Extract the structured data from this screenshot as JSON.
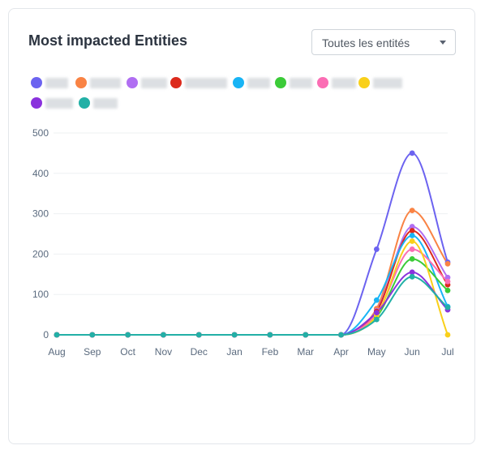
{
  "card": {
    "title": "Most impacted Entities",
    "filter": {
      "selected": "Toutes les entités"
    }
  },
  "legend": [
    {
      "color": "#6c63f0"
    },
    {
      "color": "#f98344"
    },
    {
      "color": "#b06ef2"
    },
    {
      "color": "#dc2a1c"
    },
    {
      "color": "#18b4f5"
    },
    {
      "color": "#3bcb38"
    },
    {
      "color": "#fb6db4"
    },
    {
      "color": "#f9d01a"
    },
    {
      "color": "#8a32dd"
    },
    {
      "color": "#22b0a6"
    }
  ],
  "chart_data": {
    "type": "line",
    "title": "",
    "xlabel": "",
    "ylabel": "",
    "x": [
      "Aug",
      "Sep",
      "Oct",
      "Nov",
      "Dec",
      "Jan",
      "Feb",
      "Mar",
      "Apr",
      "May",
      "Jun",
      "Jul"
    ],
    "ylim": [
      0,
      500
    ],
    "yticks": [
      0,
      100,
      200,
      300,
      400,
      500
    ],
    "grid": true,
    "legend_position": "top-left",
    "series": [
      {
        "color": "#6c63f0",
        "values": [
          0,
          0,
          0,
          0,
          0,
          0,
          0,
          0,
          0,
          212,
          450,
          180
        ]
      },
      {
        "color": "#f98344",
        "values": [
          0,
          0,
          0,
          0,
          0,
          0,
          0,
          0,
          0,
          65,
          308,
          176
        ]
      },
      {
        "color": "#b06ef2",
        "values": [
          0,
          0,
          0,
          0,
          0,
          0,
          0,
          0,
          0,
          60,
          268,
          142
        ]
      },
      {
        "color": "#dc2a1c",
        "values": [
          0,
          0,
          0,
          0,
          0,
          0,
          0,
          0,
          0,
          58,
          258,
          124
        ]
      },
      {
        "color": "#18b4f5",
        "values": [
          0,
          0,
          0,
          0,
          0,
          0,
          0,
          0,
          0,
          86,
          246,
          70
        ]
      },
      {
        "color": "#3bcb38",
        "values": [
          0,
          0,
          0,
          0,
          0,
          0,
          0,
          0,
          0,
          45,
          188,
          110
        ]
      },
      {
        "color": "#fb6db4",
        "values": [
          0,
          0,
          0,
          0,
          0,
          0,
          0,
          0,
          0,
          52,
          212,
          132
        ]
      },
      {
        "color": "#f9d01a",
        "values": [
          0,
          0,
          0,
          0,
          0,
          0,
          0,
          0,
          0,
          48,
          232,
          0
        ]
      },
      {
        "color": "#8a32dd",
        "values": [
          0,
          0,
          0,
          0,
          0,
          0,
          0,
          0,
          0,
          55,
          155,
          62
        ]
      },
      {
        "color": "#22b0a6",
        "values": [
          0,
          0,
          0,
          0,
          0,
          0,
          0,
          0,
          0,
          38,
          144,
          68
        ]
      }
    ]
  }
}
